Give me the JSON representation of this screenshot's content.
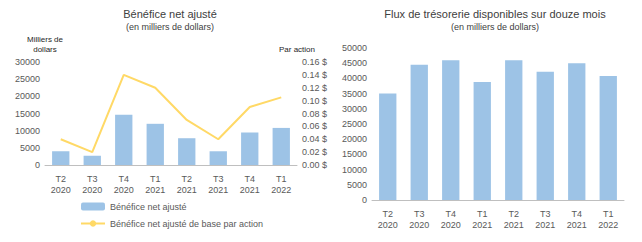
{
  "chart_data": [
    {
      "type": "bar",
      "title": "Bénéfice net ajusté",
      "subtitle": "(en milliers de dollars)",
      "ylabel": "Milliers de\ndollars",
      "y2label": "Par action",
      "categories": [
        "T2\n2020",
        "T3\n2020",
        "T4\n2020",
        "T1\n2021",
        "T2\n2021",
        "T3\n2021",
        "T4\n2021",
        "T1\n2022"
      ],
      "series": [
        {
          "name": "Bénéfice net ajusté",
          "type": "bar",
          "color": "#9dc3e6",
          "values": [
            4000,
            2700,
            14600,
            12000,
            7800,
            4000,
            9500,
            10800
          ]
        },
        {
          "name": "Bénéfice net ajusté de base par action",
          "type": "line",
          "axis": "y2",
          "color": "#ffd966",
          "marker": "none",
          "values": [
            0.04,
            0.02,
            0.14,
            0.12,
            0.07,
            0.04,
            0.09,
            0.105
          ]
        }
      ],
      "ylim": [
        0,
        30000
      ],
      "yticks": [
        0,
        5000,
        10000,
        15000,
        20000,
        25000,
        30000
      ],
      "y2lim": [
        0,
        0.16
      ],
      "y2ticks": [
        {
          "value": 0,
          "label": "0.00 $"
        },
        {
          "value": 0.02,
          "label": "0.02 $"
        },
        {
          "value": 0.04,
          "label": "0.04 $"
        },
        {
          "value": 0.06,
          "label": "0.06 $"
        },
        {
          "value": 0.08,
          "label": "0.08 $"
        },
        {
          "value": 0.1,
          "label": "0.10 $"
        },
        {
          "value": 0.12,
          "label": "0.12 $"
        },
        {
          "value": 0.14,
          "label": "0.14 $"
        },
        {
          "value": 0.16,
          "label": "0.16 $"
        }
      ],
      "grid": false,
      "legend": "bottom"
    },
    {
      "type": "bar",
      "title": "Flux de trésorerie disponibles sur douze mois",
      "subtitle": "(en milliers de dollars)",
      "categories": [
        "T2\n2020",
        "T3\n2020",
        "T4\n2020",
        "T1\n2021",
        "T2\n2021",
        "T3\n2021",
        "T4\n2021",
        "T1\n2022"
      ],
      "values": [
        35000,
        44500,
        46000,
        38800,
        46000,
        42200,
        45000,
        40800
      ],
      "color": "#9dc3e6",
      "ylim": [
        0,
        50000
      ],
      "yticks": [
        0,
        5000,
        10000,
        15000,
        20000,
        25000,
        30000,
        35000,
        40000,
        45000,
        50000
      ],
      "grid": false
    }
  ]
}
